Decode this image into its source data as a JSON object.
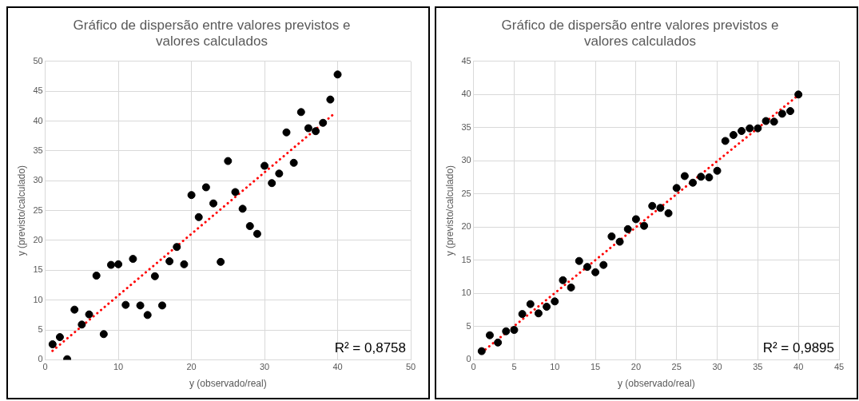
{
  "chart_data": [
    {
      "type": "scatter",
      "title": "Gráfico de dispersão entre valores previstos e valores calculados",
      "xlabel": "y (observado/real)",
      "ylabel": "y (previsto/calculado)",
      "annotations": [
        "R² = 0,8758"
      ],
      "xlim": [
        0,
        50
      ],
      "xticks": [
        0,
        10,
        20,
        30,
        40,
        50
      ],
      "ylim": [
        0,
        50
      ],
      "yticks": [
        0,
        5,
        10,
        15,
        20,
        25,
        30,
        35,
        40,
        45,
        50
      ],
      "grid": true,
      "legend": false,
      "series": [
        {
          "marker": "circle",
          "color": "#000000",
          "x": [
            1,
            2,
            3,
            4,
            5,
            6,
            7,
            8,
            9,
            10,
            11,
            12,
            13,
            14,
            15,
            16,
            17,
            18,
            19,
            20,
            21,
            22,
            23,
            24,
            25,
            26,
            27,
            28,
            29,
            30,
            31,
            32,
            33,
            34,
            35,
            36,
            37,
            38,
            39,
            40
          ],
          "values": [
            2.6,
            3.8,
            0.1,
            8.4,
            5.9,
            7.6,
            14.1,
            4.3,
            15.9,
            16.0,
            9.2,
            16.9,
            9.1,
            7.5,
            14.0,
            9.1,
            16.5,
            18.9,
            16.0,
            27.6,
            23.9,
            28.9,
            26.2,
            16.4,
            33.3,
            28.1,
            25.3,
            22.4,
            21.1,
            32.5,
            29.6,
            31.2,
            38.1,
            33.0,
            41.5,
            38.8,
            38.3,
            39.7,
            43.6,
            47.8
          ]
        },
        {
          "type": "line",
          "marker": "none",
          "line_style": "dotted",
          "color": "#ff0000",
          "x": [
            1,
            39.5
          ],
          "values": [
            1.5,
            41.2
          ]
        }
      ]
    },
    {
      "type": "scatter",
      "title": "Gráfico de dispersão entre valores previstos e valores calculados",
      "xlabel": "y (observado/real)",
      "ylabel": "y (previsto/calculado)",
      "annotations": [
        "R² = 0,9895"
      ],
      "xlim": [
        0,
        45
      ],
      "xticks": [
        0,
        5,
        10,
        15,
        20,
        25,
        30,
        35,
        40,
        45
      ],
      "ylim": [
        0,
        45
      ],
      "yticks": [
        0,
        5,
        10,
        15,
        20,
        25,
        30,
        35,
        40,
        45
      ],
      "grid": true,
      "legend": false,
      "series": [
        {
          "marker": "circle",
          "color": "#000000",
          "x": [
            1,
            2,
            3,
            4,
            5,
            6,
            7,
            8,
            9,
            10,
            11,
            12,
            13,
            14,
            15,
            16,
            17,
            18,
            19,
            20,
            21,
            22,
            23,
            24,
            25,
            26,
            27,
            28,
            29,
            30,
            31,
            32,
            33,
            34,
            35,
            36,
            37,
            38,
            39,
            40
          ],
          "values": [
            1.3,
            3.7,
            2.6,
            4.3,
            4.5,
            6.9,
            8.4,
            7.0,
            8.0,
            8.8,
            12.0,
            10.9,
            14.9,
            14.0,
            13.2,
            14.3,
            18.6,
            17.8,
            19.7,
            21.2,
            20.2,
            23.2,
            22.9,
            22.1,
            25.9,
            27.7,
            26.7,
            27.6,
            27.5,
            28.5,
            33.0,
            33.9,
            34.5,
            34.9,
            34.9,
            36.0,
            35.9,
            37.1,
            37.5,
            40.0
          ]
        },
        {
          "type": "line",
          "marker": "none",
          "line_style": "dotted",
          "color": "#ff0000",
          "x": [
            1,
            40
          ],
          "values": [
            1.1,
            39.9
          ]
        }
      ]
    }
  ]
}
